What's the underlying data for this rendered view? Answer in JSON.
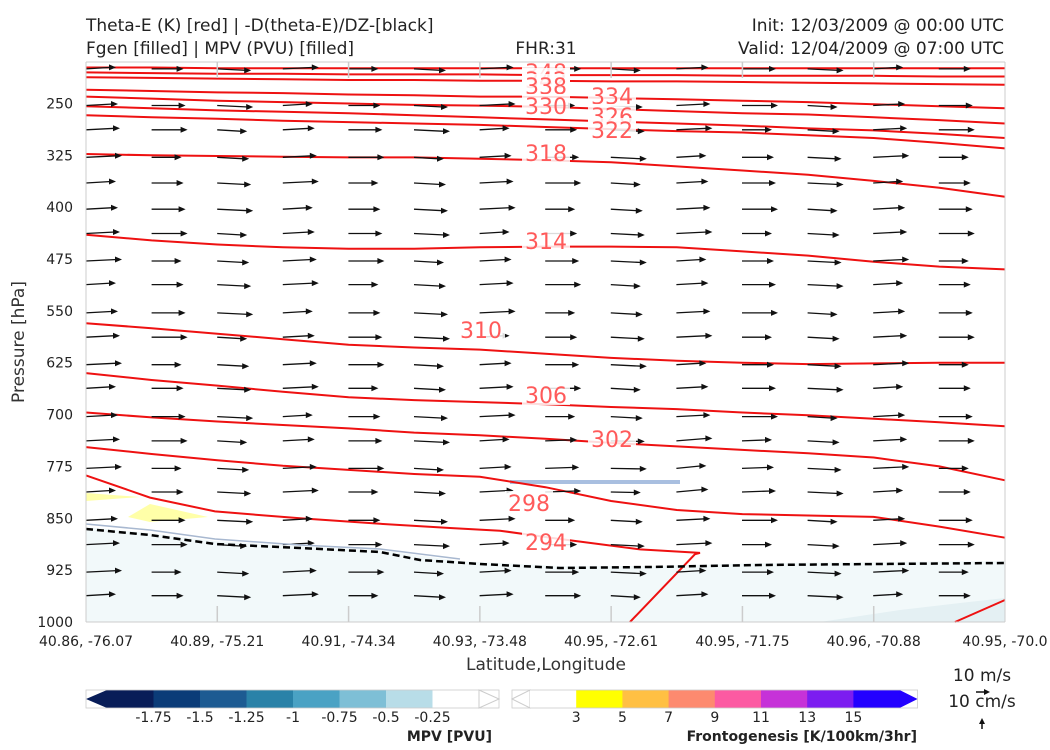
{
  "header": {
    "title_left_1": "Theta-E (K) [red] | -D(theta-E)/DZ-[black]",
    "title_left_2": "Fgen [filled] | MPV (PVU) [filled]",
    "fhr": "FHR:31",
    "init": "Init: 12/03/2009 @ 00:00 UTC",
    "valid": "Valid: 12/04/2009 @ 07:00 UTC"
  },
  "chart_data": {
    "type": "cross-section",
    "xlabel": "Latitude,Longitude",
    "ylabel": "Pressure [hPa]",
    "x_ticks": [
      "40.86, -76.07",
      "40.89, -75.21",
      "40.91, -74.34",
      "40.93, -73.48",
      "40.95, -72.61",
      "40.95, -71.75",
      "40.96, -70.88",
      "40.95, -70.0"
    ],
    "y_ticks": [
      250,
      325,
      400,
      475,
      550,
      625,
      700,
      775,
      850,
      925,
      1000
    ],
    "ylim": [
      1000,
      190
    ],
    "y_axis": "pressure, inverted",
    "theta_e_contours": [
      {
        "level": 348,
        "p": [
          198,
          198,
          199,
          199,
          199,
          199,
          199,
          199,
          199,
          199,
          199,
          199,
          199,
          199,
          199
        ]
      },
      {
        "level": 342,
        "p": [
          205,
          206,
          207,
          207,
          208,
          208,
          208,
          209,
          209,
          209,
          210,
          210,
          210,
          211,
          211
        ]
      },
      {
        "level": 338,
        "p": [
          212,
          213,
          214,
          215,
          216,
          216,
          217,
          217,
          218,
          218,
          219,
          220,
          221,
          222,
          223
        ]
      },
      {
        "level": 334,
        "p": [
          230,
          232,
          234,
          235,
          237,
          238,
          240,
          240,
          242,
          244,
          246,
          248,
          251,
          254,
          257
        ]
      },
      {
        "level": 330,
        "p": [
          240,
          243,
          246,
          248,
          250,
          252,
          253,
          255,
          258,
          261,
          264,
          266,
          270,
          274,
          279
        ]
      },
      {
        "level": 326,
        "p": [
          254,
          257,
          260,
          262,
          264,
          267,
          270,
          273,
          276,
          279,
          282,
          286,
          289,
          294,
          300
        ]
      },
      {
        "level": 322,
        "p": [
          267,
          270,
          272,
          275,
          277,
          279,
          281,
          284,
          287,
          290,
          292,
          296,
          300,
          307,
          315
        ]
      },
      {
        "level": 318,
        "p": [
          323,
          325,
          326,
          327,
          328,
          328,
          330,
          332,
          335,
          341,
          347,
          353,
          362,
          372,
          385
        ]
      },
      {
        "level": 314,
        "p": [
          440,
          448,
          454,
          458,
          460,
          460,
          458,
          457,
          457,
          458,
          464,
          470,
          479,
          486,
          490
        ]
      },
      {
        "level": 310,
        "p": [
          568,
          575,
          583,
          591,
          599,
          603,
          606,
          612,
          618,
          622,
          625,
          627,
          626,
          625,
          625
        ]
      },
      {
        "level": 306,
        "p": [
          640,
          650,
          658,
          667,
          675,
          679,
          682,
          685,
          689,
          692,
          697,
          701,
          706,
          711,
          717
        ]
      },
      {
        "level": 302,
        "p": [
          697,
          704,
          710,
          715,
          720,
          726,
          730,
          735,
          741,
          746,
          751,
          756,
          762,
          775,
          795
        ]
      },
      {
        "level": 298,
        "p": [
          747,
          757,
          766,
          774,
          780,
          786,
          790,
          805,
          825,
          838,
          844,
          846,
          848,
          862,
          878
        ]
      },
      {
        "level": 294,
        "p": [
          788,
          820,
          840,
          850,
          858,
          864,
          868,
          880,
          895,
          900,
          902,
          1000
        ]
      }
    ],
    "mpv_levels": [
      -1.75,
      -1.5,
      -1.25,
      -1.0,
      -0.75,
      -0.5,
      -0.25
    ],
    "mpv_colors": [
      "#081d58",
      "#0b3c78",
      "#1d5b92",
      "#2a82a8",
      "#4aa2c4",
      "#7ebfd6",
      "#b8dde8",
      "#ffffff"
    ],
    "fgen_levels": [
      3,
      5,
      7,
      9,
      11,
      13,
      15
    ],
    "fgen_colors": [
      "#ffffff",
      "#ffff00",
      "#ffc043",
      "#fd8a6f",
      "#fc5aa2",
      "#c632d8",
      "#7c1df0",
      "#2300ff"
    ],
    "mpv_label": "MPV [PVU]",
    "fgen_label": "Frontogenesis [K/100km/3hr]",
    "vector_scale_u": "10 m/s",
    "vector_scale_w": "10 cm/s",
    "grid": false
  }
}
